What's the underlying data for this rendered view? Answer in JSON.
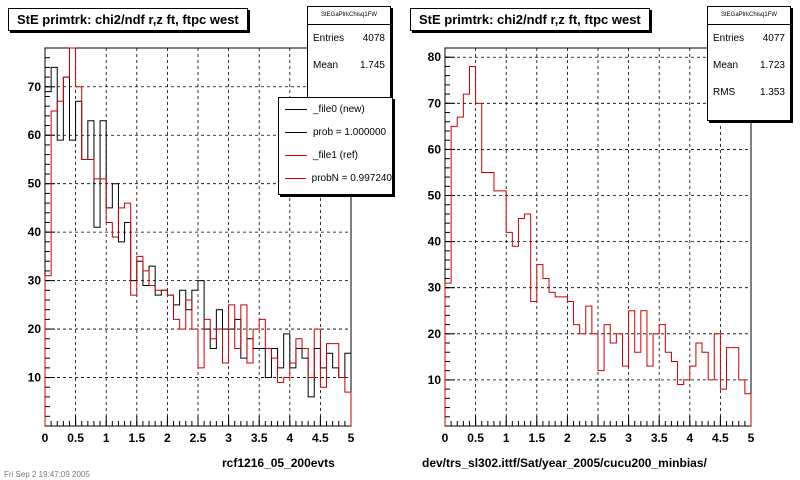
{
  "colors": {
    "file0": "#000000",
    "file1": "#cc0000",
    "grid": "#000000"
  },
  "left_panel": {
    "title": "StE primtrk: chi2/ndf r,z ft, ftpc west",
    "stats": {
      "name": "StEGaPlrkChisq1FW",
      "entries_label": "Entries",
      "entries": "4078",
      "mean_label": "Mean",
      "mean": "1.745"
    },
    "legend": [
      {
        "label": "_file0 (new)",
        "color": "#000000"
      },
      {
        "label": "prob = 1.000000",
        "color": "#000000"
      },
      {
        "label": "_file1 (ref)",
        "color": "#cc0000"
      },
      {
        "label": "probN = 0.997240",
        "color": "#cc0000"
      }
    ],
    "xlabel": "rcf1216_05_200evts",
    "footer": "Fri Sep  2 19:47:09 2005"
  },
  "right_panel": {
    "title": "StE primtrk: chi2/ndf r,z ft, ftpc west",
    "stats": {
      "name": "StEGaPlrkChisq1FW",
      "entries_label": "Entries",
      "entries": "4077",
      "mean_label": "Mean",
      "mean": "1.723",
      "rms_label": "RMS",
      "rms": "1.353"
    },
    "xlabel": "dev/trs_sl302.ittf/Sat/year_2005/cucu200_minbias/"
  },
  "chart_data": [
    {
      "type": "histogram",
      "title": "StE primtrk: chi2/ndf r,z ft, ftpc west",
      "xlabel": "rcf1216_05_200evts",
      "xlim": [
        0,
        5
      ],
      "ylim": [
        0,
        78
      ],
      "xticks": [
        "0",
        "0.5",
        "1",
        "1.5",
        "2",
        "2.5",
        "3",
        "3.5",
        "4",
        "4.5",
        "5"
      ],
      "yticks": [
        "10",
        "20",
        "30",
        "40",
        "50",
        "60",
        "70"
      ],
      "grid": true,
      "legend_position": "top-right",
      "bin_edges_start": 0,
      "bin_width": 0.1,
      "series": [
        {
          "name": "_file0 (new)",
          "values": [
            69,
            74,
            59,
            72,
            59,
            67,
            55,
            63,
            41,
            63,
            45,
            50,
            38,
            42,
            30,
            34,
            29,
            33,
            27,
            28,
            27,
            25,
            28,
            24,
            28,
            30,
            20,
            16,
            24,
            20,
            20,
            22,
            14,
            18,
            16,
            16,
            10,
            16,
            12,
            19,
            12,
            16,
            14,
            6,
            16,
            12,
            15,
            12,
            10,
            15
          ]
        },
        {
          "name": "_file1 (ref)",
          "values": [
            31,
            65,
            67,
            72,
            78,
            70,
            55,
            55,
            51,
            51,
            42,
            39,
            45,
            46,
            27,
            35,
            32,
            29,
            28,
            28,
            27,
            22,
            20,
            26,
            20,
            12,
            22,
            18,
            20,
            13,
            25,
            16,
            25,
            13,
            20,
            22,
            16,
            14,
            9,
            10,
            13,
            18,
            16,
            10,
            20,
            8,
            17,
            17,
            10,
            7
          ]
        }
      ]
    },
    {
      "type": "histogram",
      "title": "StE primtrk: chi2/ndf r,z ft, ftpc west",
      "xlabel": "dev/trs_sl302.ittf/Sat/year_2005/cucu200_minbias/",
      "xlim": [
        0,
        5
      ],
      "ylim": [
        0,
        82
      ],
      "xticks": [
        "0",
        "0.5",
        "1",
        "1.5",
        "2",
        "2.5",
        "3",
        "3.5",
        "4",
        "4.5",
        "5"
      ],
      "yticks": [
        "10",
        "20",
        "30",
        "40",
        "50",
        "60",
        "70",
        "80"
      ],
      "grid": true,
      "bin_edges_start": 0,
      "bin_width": 0.1,
      "series": [
        {
          "name": "_file1 (ref)",
          "values": [
            31,
            65,
            67,
            72,
            78,
            70,
            55,
            55,
            51,
            51,
            42,
            39,
            45,
            46,
            27,
            35,
            32,
            29,
            28,
            28,
            27,
            22,
            20,
            26,
            20,
            12,
            22,
            18,
            20,
            13,
            25,
            16,
            25,
            13,
            20,
            22,
            16,
            14,
            9,
            10,
            13,
            18,
            16,
            10,
            20,
            8,
            17,
            17,
            10,
            7
          ]
        }
      ]
    }
  ]
}
